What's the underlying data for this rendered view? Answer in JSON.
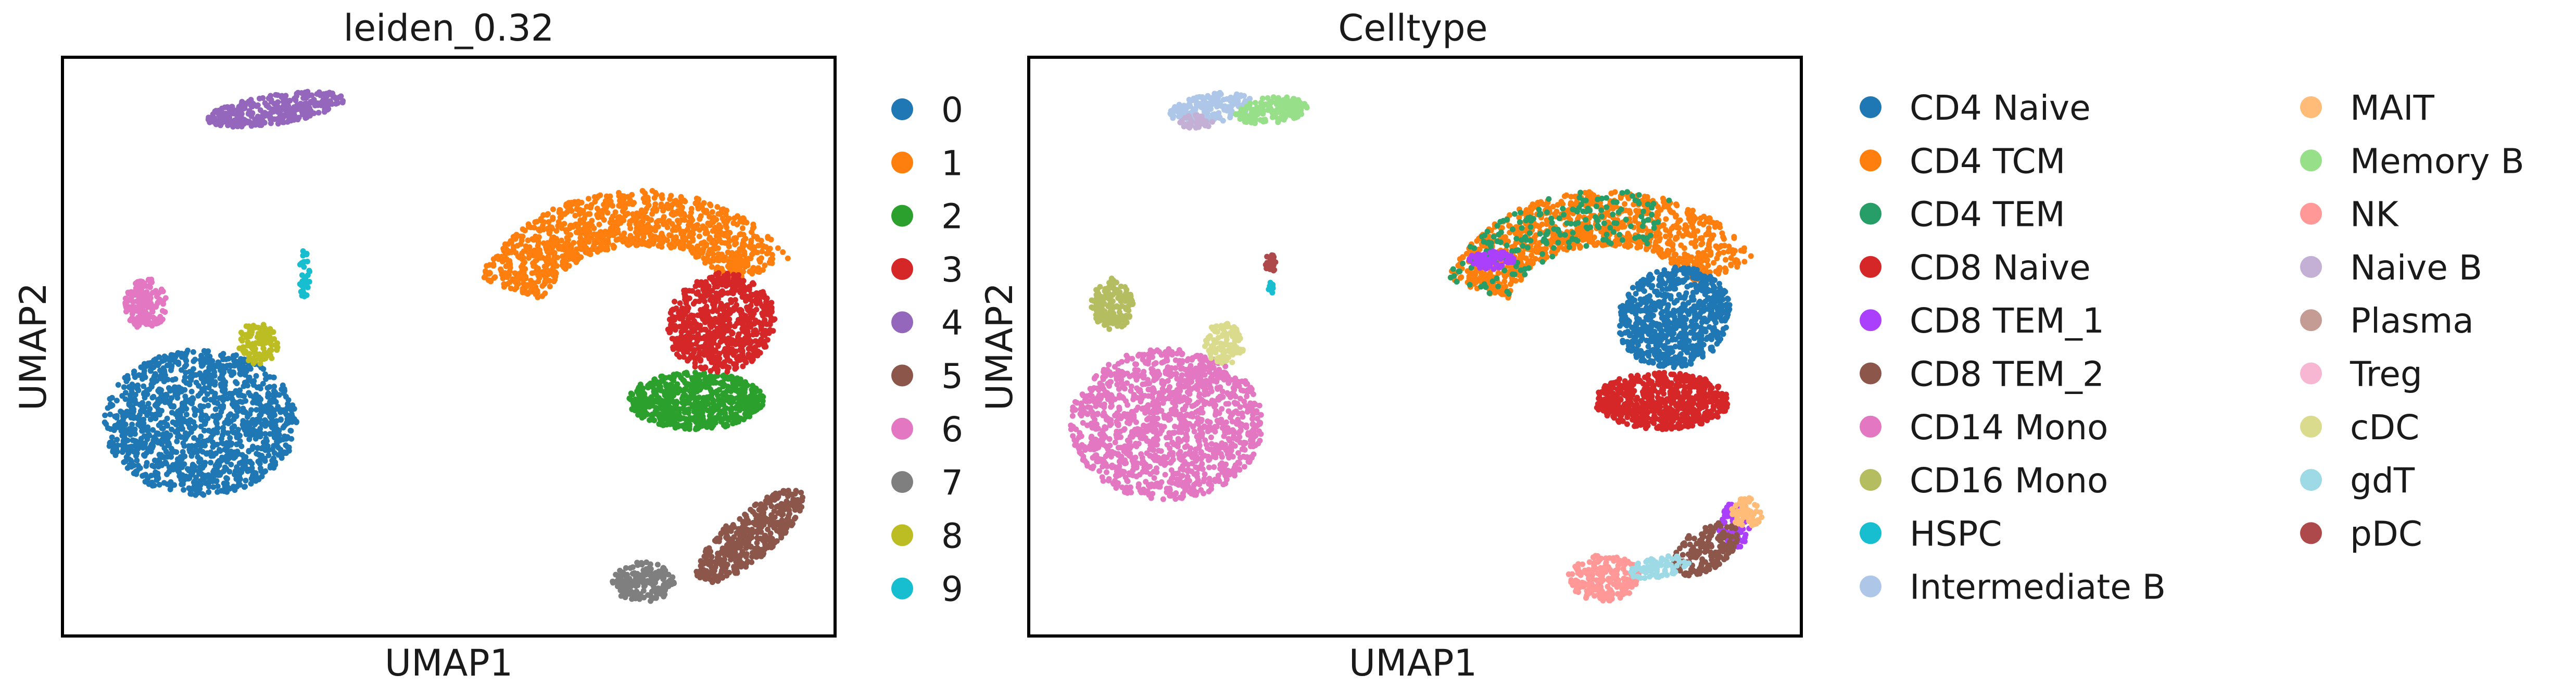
{
  "chart_data": [
    {
      "type": "scatter",
      "title": "leiden_0.32",
      "xlabel": "UMAP1",
      "ylabel": "UMAP2",
      "grid": false,
      "ticks": false,
      "legend_placement": "right",
      "legend_columns": 1,
      "series": [
        {
          "name": "0",
          "color": "#1f77b4"
        },
        {
          "name": "1",
          "color": "#ff7f0e"
        },
        {
          "name": "2",
          "color": "#2ca02c"
        },
        {
          "name": "3",
          "color": "#d62728"
        },
        {
          "name": "4",
          "color": "#9467bd"
        },
        {
          "name": "5",
          "color": "#8c564b"
        },
        {
          "name": "6",
          "color": "#e377c2"
        },
        {
          "name": "7",
          "color": "#7f7f7f"
        },
        {
          "name": "8",
          "color": "#bcbd22"
        },
        {
          "name": "9",
          "color": "#17becf"
        }
      ]
    },
    {
      "type": "scatter",
      "title": "Celltype",
      "xlabel": "UMAP1",
      "ylabel": "UMAP2",
      "grid": false,
      "ticks": false,
      "legend_placement": "right",
      "legend_columns": 2,
      "series": [
        {
          "name": "CD4 Naive",
          "color": "#1f77b4"
        },
        {
          "name": "CD4 TCM",
          "color": "#ff7f0e"
        },
        {
          "name": "CD4 TEM",
          "color": "#279e68"
        },
        {
          "name": "CD8 Naive",
          "color": "#d62728"
        },
        {
          "name": "CD8 TEM_1",
          "color": "#aa40fc"
        },
        {
          "name": "CD8 TEM_2",
          "color": "#8c564b"
        },
        {
          "name": "CD14 Mono",
          "color": "#e377c2"
        },
        {
          "name": "CD16 Mono",
          "color": "#b5bd61"
        },
        {
          "name": "HSPC",
          "color": "#17becf"
        },
        {
          "name": "Intermediate B",
          "color": "#aec7e8"
        },
        {
          "name": "MAIT",
          "color": "#ffbb78"
        },
        {
          "name": "Memory B",
          "color": "#98df8a"
        },
        {
          "name": "NK",
          "color": "#ff9896"
        },
        {
          "name": "Naive B",
          "color": "#c5b0d5"
        },
        {
          "name": "Plasma",
          "color": "#c49c94"
        },
        {
          "name": "Treg",
          "color": "#f7b6d2"
        },
        {
          "name": "cDC",
          "color": "#dbdb8d"
        },
        {
          "name": "gdT",
          "color": "#9edae5"
        },
        {
          "name": "pDC",
          "color": "#ad494a"
        }
      ]
    }
  ]
}
